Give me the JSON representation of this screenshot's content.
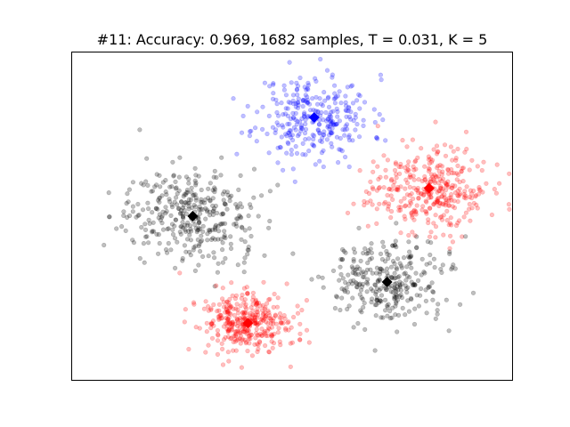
{
  "chart_data": {
    "type": "scatter",
    "title": "#11: Accuracy: 0.969, 1682 samples, T = 0.031, K = 5",
    "xlabel": "",
    "ylabel": "",
    "xlim": [
      0,
      100
    ],
    "ylim": [
      0,
      100
    ],
    "axis_ticks": false,
    "grid": false,
    "legend": "none",
    "point_alpha": 0.25,
    "clusters": [
      {
        "color": "#0000ff",
        "center": [
          55.0,
          80.0
        ],
        "spread": [
          6.5,
          6.5
        ],
        "count": 300
      },
      {
        "color": "#ff0000",
        "center": [
          81.0,
          58.5
        ],
        "spread": [
          6.5,
          6.5
        ],
        "count": 360
      },
      {
        "color": "#000000",
        "center": [
          27.5,
          50.0
        ],
        "spread": [
          7.5,
          7.0
        ],
        "count": 360
      },
      {
        "color": "#000000",
        "center": [
          71.5,
          30.0
        ],
        "spread": [
          6.5,
          6.5
        ],
        "count": 300
      },
      {
        "color": "#ff0000",
        "center": [
          40.0,
          17.5
        ],
        "spread": [
          5.0,
          4.5
        ],
        "count": 362
      }
    ],
    "centroids": [
      {
        "color": "#0000ff",
        "x": 55.0,
        "y": 80.0
      },
      {
        "color": "#ff0000",
        "x": 81.0,
        "y": 58.5
      },
      {
        "color": "#000000",
        "x": 27.5,
        "y": 50.0
      },
      {
        "color": "#000000",
        "x": 71.5,
        "y": 30.0
      },
      {
        "color": "#ff0000",
        "x": 40.0,
        "y": 17.5
      }
    ]
  }
}
